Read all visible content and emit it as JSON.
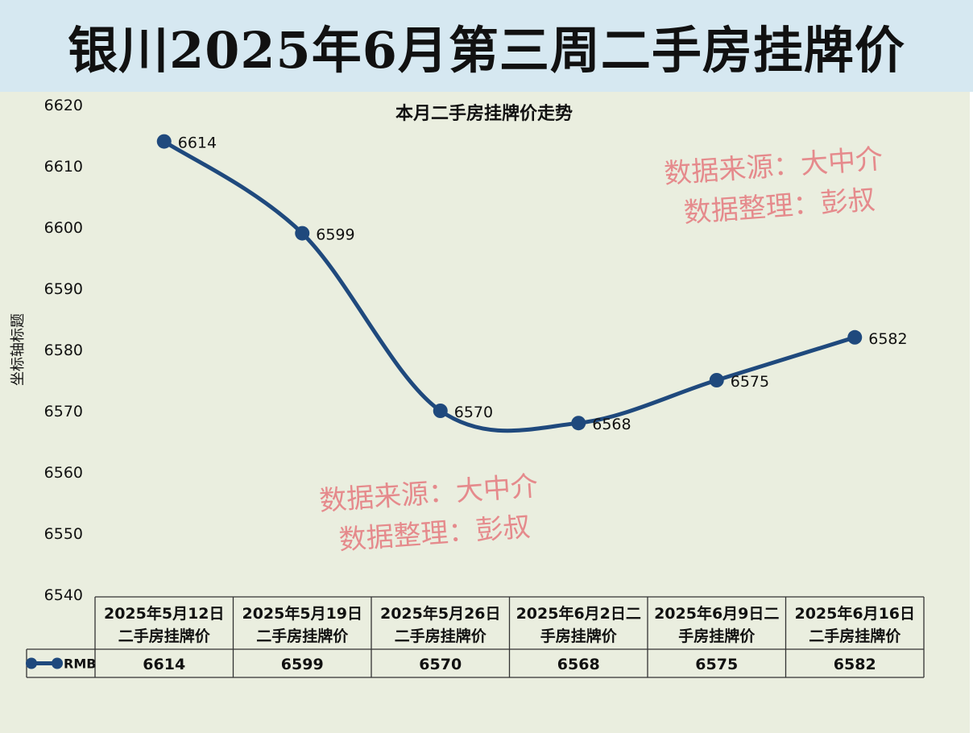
{
  "banner": {
    "title": "银川2025年6月第三周二手房挂牌价"
  },
  "watermark": {
    "line1": "数据来源：大中介",
    "line2": "数据整理：彭叔"
  },
  "colors": {
    "banner_bg": "#d6e8f1",
    "plot_bg": "#eaeedf",
    "series": "#1f497d",
    "watermark": "#e58a8c"
  },
  "chart_data": {
    "type": "line",
    "title": "本月二手房挂牌价走势",
    "ylabel": "坐标轴标题",
    "xlabel": "",
    "ylim": [
      6540,
      6620
    ],
    "yticks": [
      6620,
      6610,
      6600,
      6590,
      6580,
      6570,
      6560,
      6550,
      6540
    ],
    "categories": [
      [
        "2025年5月12日",
        "二手房挂牌价"
      ],
      [
        "2025年5月19日",
        "二手房挂牌价"
      ],
      [
        "2025年5月26日",
        "二手房挂牌价"
      ],
      [
        "2025年6月2日二",
        "手房挂牌价"
      ],
      [
        "2025年6月9日二",
        "手房挂牌价"
      ],
      [
        "2025年6月16日",
        "二手房挂牌价"
      ]
    ],
    "series": [
      {
        "name": "RMB",
        "values": [
          6614,
          6599,
          6570,
          6568,
          6575,
          6582
        ]
      }
    ],
    "data_table": true,
    "smooth": true,
    "grid": false
  }
}
